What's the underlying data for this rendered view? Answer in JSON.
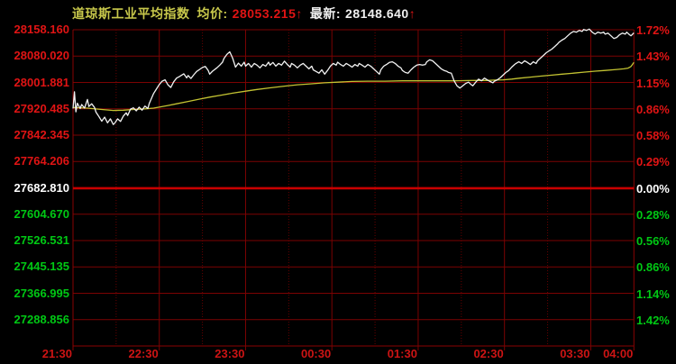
{
  "title": {
    "index_name": "道琼斯工业平均指数",
    "avg_label": "均价:",
    "avg_value": "28053.215",
    "avg_arrow": "↑",
    "last_label": "最新:",
    "last_value": "28148.640",
    "last_arrow": "↑"
  },
  "colors": {
    "background": "#000000",
    "grid_solid": "#7c0202",
    "grid_dotted": "#670000",
    "frame": "#8a0202",
    "zero_line": "#c80000",
    "up_text": "#e01414",
    "down_text": "#00c814",
    "neutral_text": "#ffffff",
    "time_text": "#cd1414",
    "title_yellow": "#c8c84b",
    "title_white": "#f0f0f0",
    "price_line": "#f2f2f2",
    "avg_line": "#c3c332"
  },
  "chart_data": {
    "type": "line",
    "title": "道琼斯工业平均指数",
    "session": {
      "start": "21:30",
      "end": "04:00",
      "total_minutes": 390
    },
    "prev_close": 27682.81,
    "average_price": 28053.215,
    "latest_price": 28148.64,
    "y_axis": {
      "top_value": 28158.16,
      "bottom_value": 27288.856,
      "rows": 11
    },
    "left_axis_labels": [
      {
        "text": "28158.160",
        "tone": "up"
      },
      {
        "text": "28080.020",
        "tone": "up"
      },
      {
        "text": "28001.881",
        "tone": "up"
      },
      {
        "text": "27920.485",
        "tone": "up"
      },
      {
        "text": "27842.345",
        "tone": "up"
      },
      {
        "text": "27764.206",
        "tone": "up"
      },
      {
        "text": "27682.810",
        "tone": "neutral"
      },
      {
        "text": "27604.670",
        "tone": "down"
      },
      {
        "text": "27526.531",
        "tone": "down"
      },
      {
        "text": "27445.135",
        "tone": "down"
      },
      {
        "text": "27366.995",
        "tone": "down"
      },
      {
        "text": "27288.856",
        "tone": "down"
      }
    ],
    "right_axis_labels": [
      {
        "text": "1.72%",
        "tone": "up"
      },
      {
        "text": "1.43%",
        "tone": "up"
      },
      {
        "text": "1.15%",
        "tone": "up"
      },
      {
        "text": "0.86%",
        "tone": "up"
      },
      {
        "text": "0.58%",
        "tone": "up"
      },
      {
        "text": "0.29%",
        "tone": "up"
      },
      {
        "text": "0.00%",
        "tone": "neutral"
      },
      {
        "text": "0.28%",
        "tone": "down"
      },
      {
        "text": "0.56%",
        "tone": "down"
      },
      {
        "text": "0.86%",
        "tone": "down"
      },
      {
        "text": "1.14%",
        "tone": "down"
      },
      {
        "text": "1.42%",
        "tone": "down"
      }
    ],
    "x_labels": [
      {
        "text": "21:30",
        "minute": 0
      },
      {
        "text": "22:30",
        "minute": 60
      },
      {
        "text": "23:30",
        "minute": 120
      },
      {
        "text": "00:30",
        "minute": 180
      },
      {
        "text": "01:30",
        "minute": 240
      },
      {
        "text": "02:30",
        "minute": 300
      },
      {
        "text": "03:30",
        "minute": 360
      },
      {
        "text": "04:00",
        "minute": 390
      }
    ],
    "grid": {
      "solid_vertical_minutes": [
        60,
        120,
        180,
        240,
        300,
        360
      ],
      "dotted_vertical_minutes": [
        30,
        90,
        150,
        210,
        270,
        330
      ]
    },
    "series": [
      {
        "name": "price",
        "color_key": "price_line",
        "points": [
          [
            0,
            27922
          ],
          [
            1,
            27972
          ],
          [
            2,
            27912
          ],
          [
            3,
            27938
          ],
          [
            5,
            27922
          ],
          [
            6,
            27934
          ],
          [
            8,
            27923
          ],
          [
            10,
            27949
          ],
          [
            11,
            27928
          ],
          [
            13,
            27936
          ],
          [
            15,
            27925
          ],
          [
            16,
            27911
          ],
          [
            18,
            27898
          ],
          [
            20,
            27884
          ],
          [
            22,
            27896
          ],
          [
            24,
            27879
          ],
          [
            26,
            27891
          ],
          [
            28,
            27874
          ],
          [
            29,
            27878
          ],
          [
            31,
            27891
          ],
          [
            33,
            27883
          ],
          [
            35,
            27899
          ],
          [
            37,
            27909
          ],
          [
            38,
            27901
          ],
          [
            40,
            27920
          ],
          [
            42,
            27924
          ],
          [
            44,
            27915
          ],
          [
            46,
            27926
          ],
          [
            48,
            27917
          ],
          [
            50,
            27929
          ],
          [
            52,
            27922
          ],
          [
            53,
            27937
          ],
          [
            56,
            27967
          ],
          [
            58,
            27980
          ],
          [
            60,
            27994
          ],
          [
            62,
            28004
          ],
          [
            64,
            28008
          ],
          [
            66,
            27993
          ],
          [
            68,
            27985
          ],
          [
            70,
            28002
          ],
          [
            72,
            28013
          ],
          [
            74,
            28018
          ],
          [
            77,
            28026
          ],
          [
            79,
            28014
          ],
          [
            80,
            28021
          ],
          [
            82,
            28012
          ],
          [
            84,
            28023
          ],
          [
            86,
            28033
          ],
          [
            88,
            28039
          ],
          [
            90,
            28045
          ],
          [
            92,
            28048
          ],
          [
            94,
            28036
          ],
          [
            95,
            28025
          ],
          [
            97,
            28034
          ],
          [
            100,
            28044
          ],
          [
            102,
            28052
          ],
          [
            104,
            28061
          ],
          [
            105,
            28072
          ],
          [
            107,
            28084
          ],
          [
            109,
            28092
          ],
          [
            111,
            28073
          ],
          [
            113,
            28046
          ],
          [
            115,
            28058
          ],
          [
            117,
            28049
          ],
          [
            119,
            28061
          ],
          [
            120,
            28049
          ],
          [
            122,
            28057
          ],
          [
            124,
            28046
          ],
          [
            126,
            28057
          ],
          [
            128,
            28052
          ],
          [
            130,
            28044
          ],
          [
            132,
            28054
          ],
          [
            134,
            28049
          ],
          [
            136,
            28061
          ],
          [
            137,
            28052
          ],
          [
            139,
            28060
          ],
          [
            141,
            28049
          ],
          [
            143,
            28057
          ],
          [
            145,
            28052
          ],
          [
            147,
            28064
          ],
          [
            149,
            28054
          ],
          [
            151,
            28046
          ],
          [
            152,
            28057
          ],
          [
            154,
            28052
          ],
          [
            156,
            28044
          ],
          [
            158,
            28052
          ],
          [
            160,
            28057
          ],
          [
            162,
            28049
          ],
          [
            164,
            28041
          ],
          [
            166,
            28049
          ],
          [
            167,
            28038
          ],
          [
            169,
            28033
          ],
          [
            171,
            28028
          ],
          [
            173,
            28038
          ],
          [
            175,
            28025
          ],
          [
            177,
            28036
          ],
          [
            179,
            28049
          ],
          [
            181,
            28057
          ],
          [
            183,
            28052
          ],
          [
            184,
            28061
          ],
          [
            186,
            28054
          ],
          [
            188,
            28049
          ],
          [
            190,
            28057
          ],
          [
            192,
            28052
          ],
          [
            194,
            28046
          ],
          [
            196,
            28054
          ],
          [
            198,
            28049
          ],
          [
            199,
            28057
          ],
          [
            201,
            28052
          ],
          [
            203,
            28046
          ],
          [
            205,
            28054
          ],
          [
            207,
            28049
          ],
          [
            209,
            28041
          ],
          [
            211,
            28033
          ],
          [
            213,
            28025
          ],
          [
            214,
            28038
          ],
          [
            216,
            28049
          ],
          [
            218,
            28054
          ],
          [
            220,
            28060
          ],
          [
            222,
            28062
          ],
          [
            224,
            28057
          ],
          [
            226,
            28049
          ],
          [
            228,
            28044
          ],
          [
            229,
            28036
          ],
          [
            231,
            28030
          ],
          [
            233,
            28028
          ],
          [
            235,
            28038
          ],
          [
            237,
            28046
          ],
          [
            239,
            28052
          ],
          [
            241,
            28054
          ],
          [
            243,
            28052
          ],
          [
            245,
            28054
          ],
          [
            246,
            28062
          ],
          [
            248,
            28068
          ],
          [
            250,
            28065
          ],
          [
            252,
            28057
          ],
          [
            254,
            28049
          ],
          [
            256,
            28041
          ],
          [
            258,
            28036
          ],
          [
            260,
            28033
          ],
          [
            261,
            28030
          ],
          [
            263,
            28028
          ],
          [
            265,
            28005
          ],
          [
            267,
            27990
          ],
          [
            269,
            27983
          ],
          [
            271,
            27990
          ],
          [
            273,
            27997
          ],
          [
            275,
            28001
          ],
          [
            277,
            27993
          ],
          [
            278,
            27990
          ],
          [
            280,
            28001
          ],
          [
            282,
            28010
          ],
          [
            284,
            28005
          ],
          [
            286,
            28013
          ],
          [
            288,
            28008
          ],
          [
            290,
            28003
          ],
          [
            292,
            27999
          ],
          [
            293,
            28004
          ],
          [
            295,
            28008
          ],
          [
            297,
            28014
          ],
          [
            299,
            28022
          ],
          [
            301,
            28030
          ],
          [
            303,
            28036
          ],
          [
            305,
            28046
          ],
          [
            307,
            28054
          ],
          [
            308,
            28057
          ],
          [
            310,
            28062
          ],
          [
            312,
            28057
          ],
          [
            314,
            28065
          ],
          [
            316,
            28060
          ],
          [
            318,
            28054
          ],
          [
            320,
            28062
          ],
          [
            322,
            28057
          ],
          [
            323,
            28065
          ],
          [
            325,
            28073
          ],
          [
            327,
            28081
          ],
          [
            329,
            28089
          ],
          [
            331,
            28095
          ],
          [
            333,
            28100
          ],
          [
            335,
            28108
          ],
          [
            337,
            28116
          ],
          [
            338,
            28121
          ],
          [
            340,
            28127
          ],
          [
            342,
            28132
          ],
          [
            344,
            28140
          ],
          [
            346,
            28148
          ],
          [
            348,
            28153
          ],
          [
            350,
            28151
          ],
          [
            352,
            28156
          ],
          [
            354,
            28153
          ],
          [
            355,
            28159
          ],
          [
            357,
            28156
          ],
          [
            359,
            28160
          ],
          [
            361,
            28151
          ],
          [
            363,
            28145
          ],
          [
            365,
            28151
          ],
          [
            367,
            28148
          ],
          [
            369,
            28151
          ],
          [
            370,
            28145
          ],
          [
            372,
            28148
          ],
          [
            374,
            28140
          ],
          [
            376,
            28132
          ],
          [
            378,
            28135
          ],
          [
            380,
            28143
          ],
          [
            382,
            28148
          ],
          [
            384,
            28145
          ],
          [
            385,
            28151
          ],
          [
            387,
            28143
          ],
          [
            388,
            28140
          ],
          [
            390,
            28148.64
          ]
        ]
      },
      {
        "name": "average",
        "color_key": "avg_line",
        "points": [
          [
            0,
            27925
          ],
          [
            10,
            27923
          ],
          [
            20,
            27919
          ],
          [
            28,
            27916
          ],
          [
            35,
            27917
          ],
          [
            42,
            27919
          ],
          [
            50,
            27921
          ],
          [
            56,
            27923
          ],
          [
            60,
            27926
          ],
          [
            66,
            27931
          ],
          [
            72,
            27936
          ],
          [
            80,
            27943
          ],
          [
            88,
            27950
          ],
          [
            95,
            27956
          ],
          [
            103,
            27962
          ],
          [
            111,
            27968
          ],
          [
            120,
            27974
          ],
          [
            128,
            27979
          ],
          [
            137,
            27984
          ],
          [
            147,
            27989
          ],
          [
            156,
            27993
          ],
          [
            166,
            27996
          ],
          [
            175,
            27999
          ],
          [
            184,
            28001
          ],
          [
            194,
            28003
          ],
          [
            205,
            28004
          ],
          [
            217,
            28004
          ],
          [
            229,
            28005
          ],
          [
            241,
            28005
          ],
          [
            253,
            28005
          ],
          [
            266,
            28005
          ],
          [
            278,
            28006
          ],
          [
            288,
            28006
          ],
          [
            293,
            28007
          ],
          [
            299,
            28008
          ],
          [
            305,
            28010
          ],
          [
            311,
            28013
          ],
          [
            318,
            28016
          ],
          [
            325,
            28019
          ],
          [
            333,
            28022
          ],
          [
            340,
            28025
          ],
          [
            348,
            28028
          ],
          [
            355,
            28031
          ],
          [
            363,
            28034
          ],
          [
            370,
            28036
          ],
          [
            378,
            28039
          ],
          [
            383,
            28041
          ],
          [
            386,
            28043
          ],
          [
            388,
            28048
          ],
          [
            390,
            28060
          ]
        ]
      }
    ]
  }
}
